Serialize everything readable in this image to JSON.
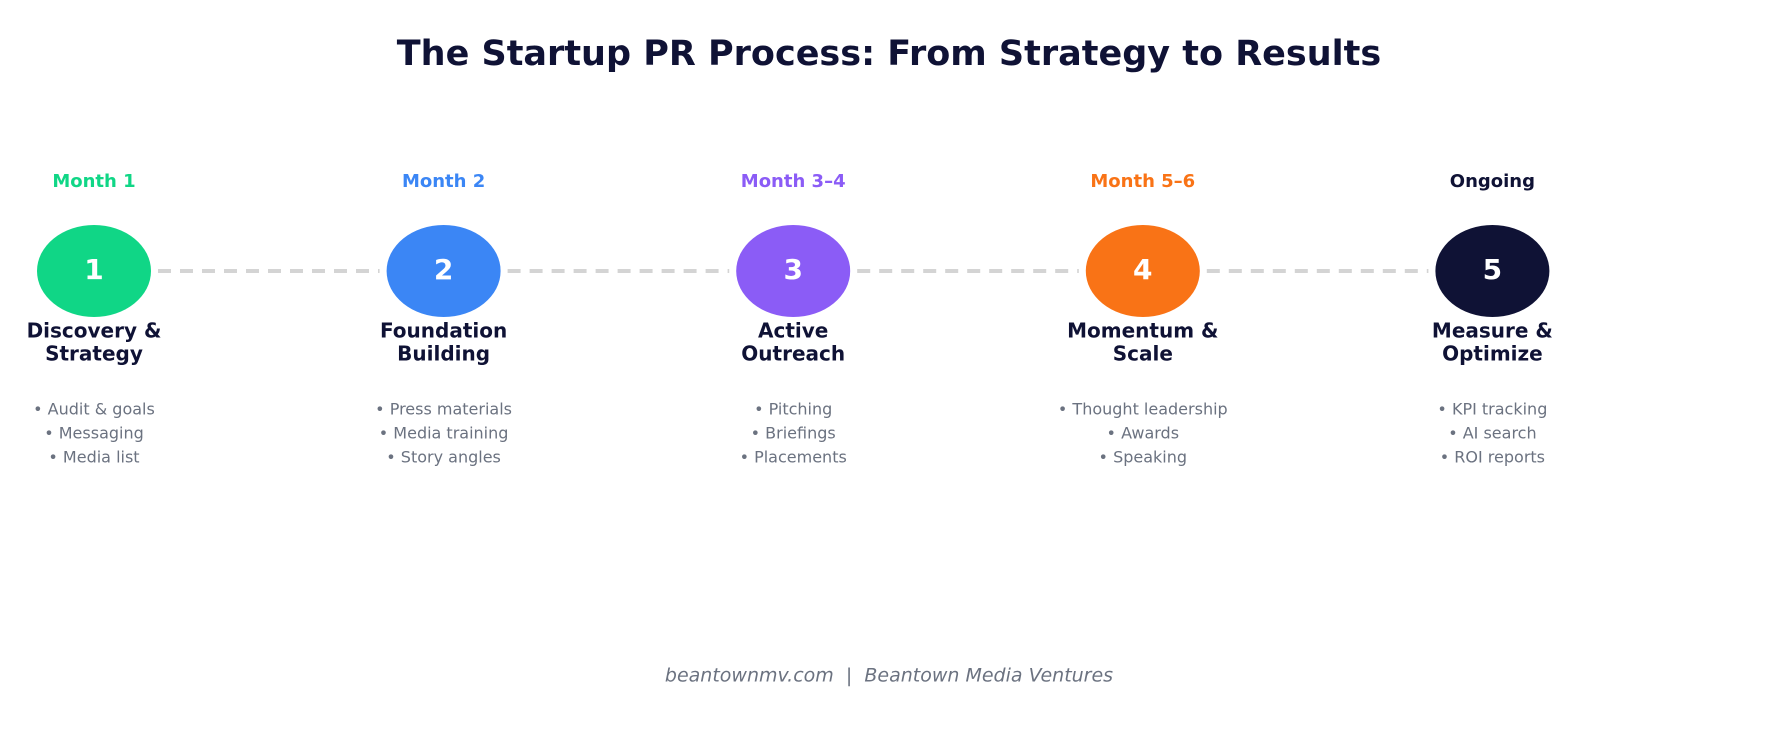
{
  "header": {
    "title": "The Startup PR Process: From Strategy to Results"
  },
  "steps": [
    {
      "time": "Month 1",
      "number": "1",
      "color": "#10d686",
      "title": [
        "Discovery &",
        "Strategy"
      ],
      "bullets": [
        "• Audit & goals",
        "• Messaging",
        "• Media list"
      ]
    },
    {
      "time": "Month 2",
      "number": "2",
      "color": "#3b86f5",
      "title": [
        "Foundation",
        "Building"
      ],
      "bullets": [
        "• Press materials",
        "• Media training",
        "• Story angles"
      ]
    },
    {
      "time": "Month 3–4",
      "number": "3",
      "color": "#8b5cf6",
      "title": [
        "Active",
        "Outreach"
      ],
      "bullets": [
        "• Pitching",
        "• Briefings",
        "• Placements"
      ]
    },
    {
      "time": "Month 5–6",
      "number": "4",
      "color": "#f97316",
      "title": [
        "Momentum &",
        "Scale"
      ],
      "bullets": [
        "• Thought leadership",
        "• Awards",
        "• Speaking"
      ]
    },
    {
      "time": "Ongoing",
      "number": "5",
      "color": "#0f1235",
      "title": [
        "Measure &",
        "Optimize"
      ],
      "bullets": [
        "• KPI tracking",
        "• AI search",
        "• ROI reports"
      ]
    }
  ],
  "footer": "beantownmv.com  |  Beantown Media Ventures"
}
